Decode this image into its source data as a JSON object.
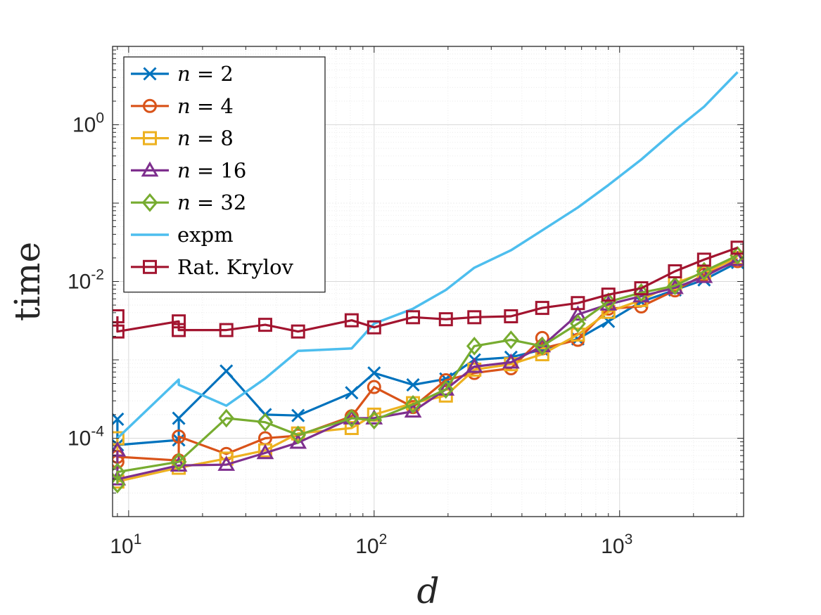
{
  "chart_data": {
    "type": "line",
    "title": "",
    "xlabel": "d",
    "ylabel": "time",
    "xscale": "log",
    "yscale": "log",
    "xlim": [
      8.6,
      3200
    ],
    "ylim": [
      1e-05,
      10
    ],
    "grid": true,
    "minor_grid": true,
    "legend_location": "top-left",
    "x_ticks": [
      {
        "base": "10",
        "exp": "1",
        "value": 10
      },
      {
        "base": "10",
        "exp": "2",
        "value": 100
      },
      {
        "base": "10",
        "exp": "3",
        "value": 1000
      }
    ],
    "y_ticks": [
      {
        "base": "10",
        "exp": "-4",
        "value": 0.0001
      },
      {
        "base": "10",
        "exp": "-2",
        "value": 0.01
      },
      {
        "base": "10",
        "exp": "0",
        "value": 1
      }
    ],
    "series": [
      {
        "name": "n = 2",
        "label_var": "n",
        "label_eq": " = 2",
        "color": "#0072BD",
        "marker": "x",
        "x": [
          9,
          9,
          16,
          16,
          25,
          36,
          49,
          81,
          100,
          144,
          196,
          256,
          361,
          484,
          676,
          900,
          1225,
          1681,
          2209,
          3025
        ],
        "y": [
          0.000175,
          8.2e-05,
          9.5e-05,
          0.00018,
          0.00072,
          0.0002,
          0.000195,
          0.00038,
          0.00068,
          0.00048,
          0.00057,
          0.001,
          0.00108,
          0.00135,
          0.00185,
          0.0031,
          0.0055,
          0.0078,
          0.0105,
          0.0175
        ]
      },
      {
        "name": "n = 4",
        "label_var": "n",
        "label_eq": " = 4",
        "color": "#D95319",
        "marker": "o",
        "x": [
          9,
          9,
          16,
          16,
          25,
          36,
          49,
          81,
          100,
          144,
          196,
          256,
          361,
          484,
          484,
          676,
          900,
          1225,
          1681,
          2209,
          3025
        ],
        "y": [
          5e-05,
          5.8e-05,
          5.2e-05,
          0.000105,
          6.3e-05,
          0.0001,
          0.000108,
          0.00019,
          0.00045,
          0.00025,
          0.00055,
          0.00068,
          0.00078,
          0.0019,
          0.0014,
          0.0018,
          0.0045,
          0.0048,
          0.0077,
          0.0122,
          0.0182
        ]
      },
      {
        "name": "n = 8",
        "label_var": "n",
        "label_eq": " = 8",
        "color": "#EDB120",
        "marker": "square",
        "x": [
          9,
          9,
          16,
          25,
          36,
          49,
          81,
          100,
          144,
          196,
          256,
          361,
          484,
          676,
          900,
          1225,
          1681,
          2209,
          3025
        ],
        "y": [
          0.0001,
          2.8e-05,
          4.2e-05,
          5.5e-05,
          7e-05,
          0.000115,
          0.000135,
          0.0002,
          0.00028,
          0.00035,
          0.00075,
          0.00088,
          0.00118,
          0.0021,
          0.0041,
          0.0058,
          0.0095,
          0.013,
          0.02
        ]
      },
      {
        "name": "n = 16",
        "label_var": "n",
        "label_eq": " = 16",
        "color": "#7E2F8E",
        "marker": "triangle",
        "x": [
          9,
          9,
          16,
          25,
          36,
          49,
          81,
          100,
          144,
          196,
          256,
          361,
          484,
          676,
          900,
          1225,
          1681,
          2209,
          3025
        ],
        "y": [
          7e-05,
          3e-05,
          4.5e-05,
          4.6e-05,
          6.5e-05,
          8.8e-05,
          0.00018,
          0.00018,
          0.00022,
          0.00042,
          0.00082,
          0.00093,
          0.0015,
          0.0038,
          0.0051,
          0.0065,
          0.0083,
          0.0115,
          0.019
        ]
      },
      {
        "name": "n = 32",
        "label_var": "n",
        "label_eq": " = 32",
        "color": "#77AC30",
        "marker": "diamond",
        "x": [
          9,
          9,
          16,
          25,
          36,
          49,
          81,
          100,
          144,
          196,
          256,
          361,
          484,
          676,
          900,
          1225,
          1681,
          2209,
          3025
        ],
        "y": [
          2.6e-05,
          3.7e-05,
          5e-05,
          0.00018,
          0.00016,
          0.00011,
          0.00018,
          0.00017,
          0.00027,
          0.00042,
          0.0015,
          0.0018,
          0.0015,
          0.0029,
          0.0055,
          0.0072,
          0.0088,
          0.0135,
          0.0215
        ]
      },
      {
        "name": "expm",
        "label_var": "",
        "label_eq": "expm",
        "color": "#4DBEEE",
        "marker": "none",
        "x": [
          9,
          16,
          16,
          25,
          36,
          49,
          81,
          100,
          144,
          196,
          256,
          361,
          484,
          676,
          900,
          1225,
          1681,
          2209,
          3025
        ],
        "y": [
          0.0001,
          0.00056,
          0.00048,
          0.00026,
          0.00058,
          0.0013,
          0.0014,
          0.0029,
          0.0045,
          0.0078,
          0.015,
          0.025,
          0.045,
          0.088,
          0.17,
          0.36,
          0.85,
          1.7,
          4.7
        ]
      },
      {
        "name": "Rat. Krylov",
        "label_var": "",
        "label_eq": "Rat. Krylov",
        "color": "#A2142F",
        "marker": "square",
        "x": [
          9,
          9,
          16,
          16,
          25,
          36,
          49,
          81,
          100,
          144,
          196,
          256,
          361,
          484,
          676,
          900,
          1225,
          1681,
          2209,
          3025
        ],
        "y": [
          0.0036,
          0.0023,
          0.0031,
          0.0024,
          0.0024,
          0.0028,
          0.0023,
          0.0032,
          0.0026,
          0.0035,
          0.0033,
          0.0035,
          0.0036,
          0.0046,
          0.0053,
          0.0068,
          0.0082,
          0.0135,
          0.019,
          0.027
        ]
      }
    ]
  }
}
